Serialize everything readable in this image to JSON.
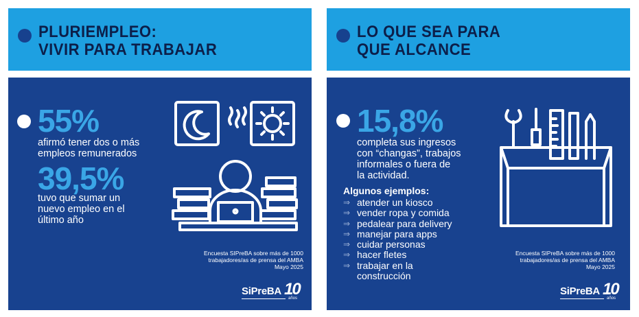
{
  "left": {
    "title": "PLURIEMPLEO:\nVIVIR PARA TRABAJAR",
    "stat1": {
      "value": "55%",
      "text": "afirmó tener dos o más\nempleos remunerados"
    },
    "stat2": {
      "value": "39,5%",
      "text": "tuvo que sumar un\nnuevo empleo en el\núltimo año"
    },
    "source": "Encuesta SIPreBA sobre más de 1000\ntrabajadores/as de prensa del AMBA\nMayo 2025",
    "logo": {
      "name": "SiPreBA",
      "number": "10",
      "sub": "años"
    },
    "icon": "worker-day-night-icon"
  },
  "right": {
    "title": "LO QUE SEA PARA\nQUE ALCANCE",
    "stat1": {
      "value": "15,8%",
      "text": "completa sus ingresos\ncon “changas”, trabajos\ninformales o fuera de\nla actividad."
    },
    "examples_title": "Algunos ejemplos:",
    "examples": [
      "atender un kiosco",
      "vender ropa y comida",
      "pedalear para delivery",
      "manejar para apps",
      "cuidar personas",
      "hacer fletes",
      "trabajar en la\nconstrucción"
    ],
    "source": "Encuesta SIPreBA sobre más de 1000\ntrabajadores/as de prensa del AMBA\nMayo 2025",
    "logo": {
      "name": "SiPreBA",
      "number": "10",
      "sub": "años"
    },
    "icon": "toolbox-icon"
  },
  "colors": {
    "header": "#1ea0e1",
    "body": "#18428f",
    "accent": "#3aa6e6",
    "title": "#0c1f4a"
  }
}
